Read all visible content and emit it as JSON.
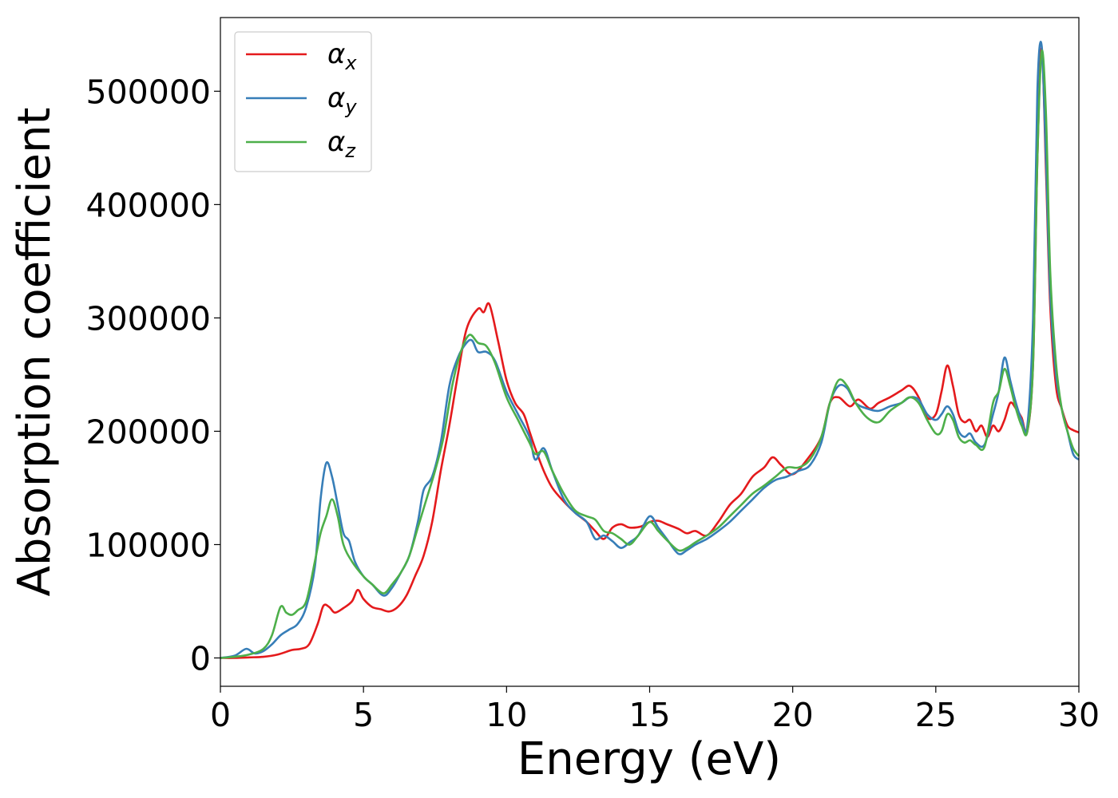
{
  "chart_data": {
    "type": "line",
    "title": "",
    "xlabel": "Energy (eV)",
    "ylabel": "Absorption coefficient",
    "xlim": [
      0,
      30
    ],
    "ylim": [
      -25000,
      565000
    ],
    "xticks": [
      0,
      5,
      10,
      15,
      20,
      25,
      30
    ],
    "xtick_labels": [
      "0",
      "5",
      "10",
      "15",
      "20",
      "25",
      "30"
    ],
    "yticks": [
      0,
      100000,
      200000,
      300000,
      400000,
      500000
    ],
    "ytick_labels": [
      "0",
      "100000",
      "200000",
      "300000",
      "400000",
      "500000"
    ],
    "grid": false,
    "legend_position": "top-left",
    "series": [
      {
        "name": "α",
        "subscript": "x",
        "color": "#e41a1c",
        "x": [
          0,
          0.5,
          1.0,
          1.5,
          2.0,
          2.5,
          2.8,
          3.1,
          3.4,
          3.6,
          3.8,
          4.0,
          4.3,
          4.6,
          4.8,
          5.0,
          5.3,
          5.6,
          5.9,
          6.2,
          6.5,
          6.8,
          7.1,
          7.4,
          7.7,
          8.0,
          8.3,
          8.6,
          9.0,
          9.2,
          9.4,
          9.7,
          10.0,
          10.3,
          10.6,
          10.8,
          11.0,
          11.3,
          11.6,
          12.0,
          12.4,
          12.8,
          13.1,
          13.4,
          13.7,
          14.0,
          14.3,
          14.7,
          15.0,
          15.3,
          15.6,
          16.0,
          16.3,
          16.6,
          17.0,
          17.4,
          17.8,
          18.2,
          18.6,
          19.0,
          19.3,
          19.6,
          20.0,
          20.5,
          21.0,
          21.3,
          21.6,
          22.0,
          22.3,
          22.7,
          23.0,
          23.4,
          23.8,
          24.1,
          24.4,
          24.7,
          25.0,
          25.2,
          25.4,
          25.6,
          25.8,
          26.0,
          26.2,
          26.4,
          26.6,
          26.8,
          27.0,
          27.2,
          27.4,
          27.6,
          27.8,
          28.0,
          28.2,
          28.4,
          28.55,
          28.7,
          28.85,
          29.0,
          29.2,
          29.4,
          29.6,
          29.8,
          30.0
        ],
        "y": [
          0,
          0,
          500,
          1000,
          3000,
          7000,
          8000,
          12000,
          30000,
          46000,
          45000,
          40000,
          44000,
          50000,
          60000,
          52000,
          45000,
          43000,
          41000,
          45000,
          55000,
          72000,
          90000,
          120000,
          165000,
          205000,
          250000,
          290000,
          308000,
          305000,
          312000,
          280000,
          245000,
          225000,
          215000,
          200000,
          185000,
          165000,
          150000,
          138000,
          128000,
          120000,
          112000,
          105000,
          115000,
          118000,
          115000,
          116000,
          120000,
          121000,
          118000,
          114000,
          110000,
          112000,
          108000,
          120000,
          135000,
          145000,
          160000,
          168000,
          177000,
          170000,
          162000,
          175000,
          195000,
          225000,
          230000,
          222000,
          228000,
          220000,
          225000,
          230000,
          236000,
          240000,
          230000,
          212000,
          215000,
          235000,
          258000,
          240000,
          215000,
          208000,
          210000,
          200000,
          205000,
          195000,
          205000,
          200000,
          210000,
          225000,
          220000,
          212000,
          200000,
          260000,
          440000,
          538000,
          430000,
          310000,
          240000,
          220000,
          205000,
          201000,
          199000
        ]
      },
      {
        "name": "α",
        "subscript": "y",
        "color": "#377eb8",
        "x": [
          0,
          0.5,
          0.9,
          1.2,
          1.5,
          1.8,
          2.1,
          2.4,
          2.7,
          3.0,
          3.3,
          3.5,
          3.7,
          3.9,
          4.1,
          4.3,
          4.5,
          4.7,
          5.0,
          5.3,
          5.7,
          6.0,
          6.3,
          6.6,
          6.9,
          7.1,
          7.4,
          7.7,
          8.0,
          8.3,
          8.6,
          8.8,
          9.0,
          9.3,
          9.6,
          10.0,
          10.4,
          10.8,
          11.0,
          11.3,
          11.6,
          12.0,
          12.4,
          12.8,
          13.1,
          13.4,
          13.7,
          14.0,
          14.3,
          14.6,
          15.0,
          15.3,
          15.6,
          16.0,
          16.3,
          16.6,
          17.0,
          17.4,
          17.8,
          18.2,
          18.6,
          19.0,
          19.4,
          19.8,
          20.2,
          20.6,
          21.0,
          21.3,
          21.6,
          21.9,
          22.2,
          22.6,
          23.0,
          23.4,
          23.8,
          24.1,
          24.4,
          24.7,
          25.0,
          25.2,
          25.4,
          25.6,
          25.8,
          26.0,
          26.2,
          26.4,
          26.7,
          27.0,
          27.2,
          27.4,
          27.6,
          27.8,
          28.0,
          28.2,
          28.4,
          28.55,
          28.7,
          28.85,
          29.0,
          29.2,
          29.4,
          29.6,
          29.8,
          30.0
        ],
        "y": [
          0,
          2000,
          8000,
          4000,
          6000,
          12000,
          20000,
          25000,
          30000,
          45000,
          80000,
          140000,
          172000,
          160000,
          135000,
          110000,
          103000,
          85000,
          72000,
          65000,
          55000,
          62000,
          75000,
          90000,
          120000,
          148000,
          160000,
          190000,
          240000,
          265000,
          278000,
          280000,
          270000,
          270000,
          262000,
          235000,
          215000,
          195000,
          175000,
          185000,
          165000,
          140000,
          128000,
          120000,
          105000,
          108000,
          103000,
          97000,
          102000,
          108000,
          125000,
          115000,
          105000,
          92000,
          95000,
          100000,
          105000,
          112000,
          120000,
          130000,
          140000,
          150000,
          157000,
          160000,
          165000,
          170000,
          190000,
          225000,
          240000,
          238000,
          225000,
          220000,
          218000,
          222000,
          225000,
          230000,
          228000,
          215000,
          210000,
          215000,
          222000,
          215000,
          200000,
          195000,
          198000,
          190000,
          188000,
          215000,
          235000,
          265000,
          245000,
          225000,
          210000,
          205000,
          300000,
          500000,
          540000,
          440000,
          320000,
          250000,
          220000,
          200000,
          180000,
          175000
        ]
      },
      {
        "name": "α",
        "subscript": "z",
        "color": "#4daf4a",
        "x": [
          0,
          0.5,
          1.0,
          1.5,
          1.8,
          2.1,
          2.3,
          2.5,
          2.7,
          3.0,
          3.3,
          3.5,
          3.7,
          3.9,
          4.1,
          4.3,
          4.6,
          5.0,
          5.3,
          5.7,
          6.0,
          6.3,
          6.6,
          6.9,
          7.2,
          7.5,
          7.8,
          8.1,
          8.4,
          8.7,
          9.0,
          9.3,
          9.6,
          10.0,
          10.4,
          10.8,
          11.0,
          11.3,
          11.6,
          12.0,
          12.4,
          12.8,
          13.1,
          13.4,
          13.7,
          14.0,
          14.3,
          14.6,
          15.0,
          15.3,
          15.6,
          16.0,
          16.3,
          16.6,
          17.0,
          17.4,
          17.8,
          18.2,
          18.6,
          19.0,
          19.4,
          19.8,
          20.2,
          20.6,
          21.0,
          21.3,
          21.6,
          21.9,
          22.2,
          22.6,
          23.0,
          23.4,
          23.8,
          24.1,
          24.4,
          24.7,
          25.0,
          25.2,
          25.4,
          25.6,
          25.8,
          26.0,
          26.2,
          26.4,
          26.7,
          27.0,
          27.2,
          27.4,
          27.6,
          27.8,
          28.0,
          28.2,
          28.4,
          28.55,
          28.7,
          28.85,
          29.0,
          29.2,
          29.4,
          29.6,
          29.8,
          30.0
        ],
        "y": [
          0,
          1000,
          3000,
          8000,
          20000,
          45000,
          40000,
          38000,
          42000,
          50000,
          85000,
          110000,
          125000,
          140000,
          125000,
          100000,
          85000,
          72000,
          65000,
          57000,
          65000,
          75000,
          90000,
          115000,
          140000,
          165000,
          195000,
          240000,
          270000,
          285000,
          278000,
          275000,
          260000,
          230000,
          210000,
          190000,
          180000,
          182000,
          165000,
          145000,
          130000,
          125000,
          122000,
          112000,
          110000,
          105000,
          100000,
          108000,
          120000,
          112000,
          104000,
          95000,
          97000,
          102000,
          108000,
          115000,
          125000,
          135000,
          145000,
          152000,
          160000,
          168000,
          168000,
          175000,
          195000,
          225000,
          245000,
          240000,
          225000,
          212000,
          208000,
          218000,
          225000,
          230000,
          225000,
          210000,
          198000,
          200000,
          215000,
          210000,
          195000,
          190000,
          192000,
          188000,
          186000,
          225000,
          235000,
          255000,
          240000,
          220000,
          205000,
          200000,
          260000,
          440000,
          535000,
          480000,
          340000,
          260000,
          220000,
          200000,
          185000,
          178000
        ]
      }
    ]
  }
}
